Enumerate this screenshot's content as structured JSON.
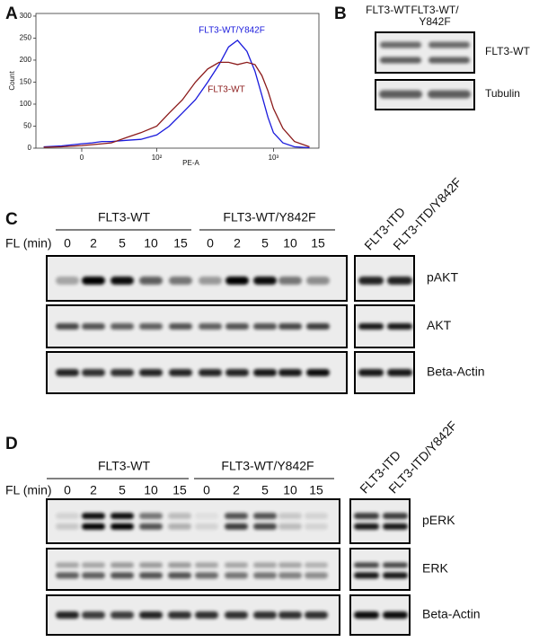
{
  "chart_data": {
    "type": "line",
    "ylabel": "Count",
    "xlabel": "PE-A",
    "xscale": "asinh",
    "x": [
      -40,
      -20,
      0,
      10,
      20,
      30,
      50,
      70,
      100,
      130,
      170,
      220,
      280,
      350,
      420,
      500,
      600,
      700,
      800,
      900,
      1000,
      1200,
      1500,
      2000
    ],
    "series": [
      {
        "name": "FLT3-WT/Y842F",
        "color": "#1a1adc",
        "values": [
          3,
          5,
          10,
          12,
          15,
          15,
          18,
          20,
          30,
          50,
          80,
          110,
          150,
          190,
          230,
          245,
          220,
          175,
          120,
          70,
          35,
          12,
          3,
          1
        ]
      },
      {
        "name": "FLT3-WT",
        "color": "#8b1a1a",
        "values": [
          2,
          3,
          6,
          8,
          10,
          12,
          25,
          35,
          50,
          80,
          110,
          150,
          180,
          195,
          195,
          190,
          195,
          190,
          165,
          130,
          90,
          45,
          15,
          3
        ]
      }
    ],
    "xlim": [
      -50,
      2400
    ],
    "xticks": [
      0,
      {
        "value": 100,
        "label": "10²"
      },
      {
        "value": 1000,
        "label": "10³"
      }
    ],
    "ylim": [
      0,
      306
    ],
    "yticks": [
      0,
      50,
      100,
      150,
      200,
      250,
      300
    ]
  },
  "panel_labels": [
    "A",
    "B",
    "C",
    "D"
  ],
  "panel_b": {
    "columns": [
      [
        "FLT3-WT"
      ],
      [
        "FLT3-WT/",
        "Y842F"
      ]
    ],
    "blots": [
      "FLT3-WT",
      "Tubulin"
    ]
  },
  "panel_c": {
    "groups": [
      "FLT3-WT",
      "FLT3-WT/Y842F"
    ],
    "time_label": "FL (min)",
    "times": [
      0,
      2,
      5,
      10,
      15,
      0,
      2,
      5,
      10,
      15
    ],
    "side_lanes": [
      "FLT3-ITD",
      "FLT3-ITD/Y842F"
    ],
    "blots": [
      "pAKT",
      "AKT",
      "Beta-Actin"
    ]
  },
  "panel_d": {
    "groups": [
      "FLT3-WT",
      "FLT3-WT/Y842F"
    ],
    "time_label": "FL (min)",
    "times": [
      0,
      2,
      5,
      10,
      15,
      0,
      2,
      5,
      10,
      15
    ],
    "side_lanes": [
      "FLT3-ITD",
      "FLT3-ITD/Y842F"
    ],
    "blots": [
      "pERK",
      "ERK",
      "Beta-Actin"
    ]
  }
}
